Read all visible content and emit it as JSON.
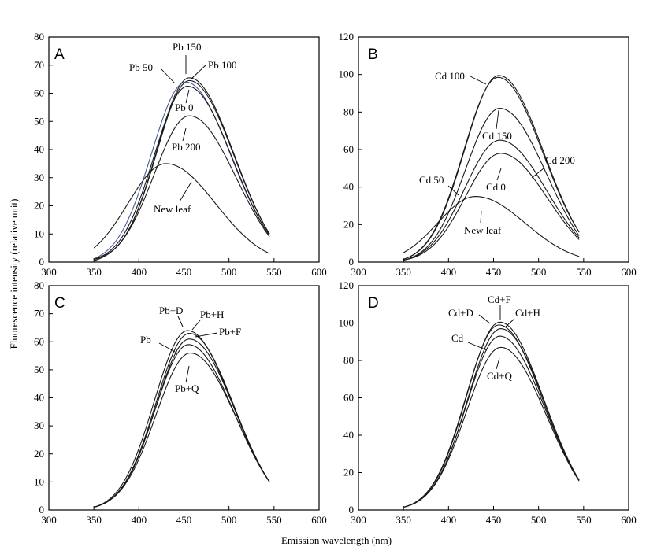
{
  "chart_data": [
    {
      "type": "line",
      "panel": "A",
      "xlim": [
        300,
        600
      ],
      "ylim": [
        0,
        80
      ],
      "yticks": [
        0,
        10,
        20,
        30,
        40,
        50,
        60,
        70,
        80
      ],
      "xticks": [
        300,
        350,
        400,
        450,
        500,
        550,
        600
      ],
      "series": [
        {
          "name": "Pb 150",
          "peak_x": 456,
          "peak_y": 65.5,
          "base_start": 1.0,
          "base_end": 10.0,
          "sl": 36,
          "sr": 50
        },
        {
          "name": "Pb 100",
          "peak_x": 456,
          "peak_y": 64.5,
          "base_start": 1.0,
          "base_end": 10.0,
          "sl": 36,
          "sr": 50
        },
        {
          "name": "Pb 50",
          "peak_x": 452,
          "peak_y": 64.0,
          "base_start": 1.2,
          "base_end": 9.5,
          "sl": 38,
          "sr": 50,
          "color": "#4a5a9e"
        },
        {
          "name": "Pb 0",
          "peak_x": 454,
          "peak_y": 62.5,
          "base_start": 1.0,
          "base_end": 9.5,
          "sl": 37,
          "sr": 50
        },
        {
          "name": "Pb 200",
          "peak_x": 456,
          "peak_y": 52.0,
          "base_start": 0.5,
          "base_end": 9.0,
          "sl": 39,
          "sr": 52
        },
        {
          "name": "New leaf",
          "peak_x": 430,
          "peak_y": 35.0,
          "base_start": 5.0,
          "base_end": 3.0,
          "sl": 42,
          "sr": 55
        }
      ],
      "annotations": [
        {
          "text": "Pb 150"
        },
        {
          "text": "Pb 50"
        },
        {
          "text": "Pb 100"
        },
        {
          "text": "Pb 0"
        },
        {
          "text": "Pb 200"
        },
        {
          "text": "New leaf"
        }
      ]
    },
    {
      "type": "line",
      "panel": "B",
      "xlim": [
        300,
        600
      ],
      "ylim": [
        0,
        120
      ],
      "yticks": [
        0,
        20,
        40,
        60,
        80,
        100,
        120
      ],
      "xticks": [
        300,
        350,
        400,
        450,
        500,
        550,
        600
      ],
      "series": [
        {
          "name": "Cd 100",
          "peak_x": 456,
          "peak_y": 99.5,
          "base_start": 1.5,
          "base_end": 16.0,
          "sl": 38,
          "sr": 50
        },
        {
          "name": "Cd 50",
          "peak_x": 455,
          "peak_y": 98.5,
          "base_start": 1.5,
          "base_end": 16.0,
          "sl": 38,
          "sr": 50
        },
        {
          "name": "Cd 150",
          "peak_x": 457,
          "peak_y": 82.0,
          "base_start": 1.0,
          "base_end": 14.0,
          "sl": 38,
          "sr": 52
        },
        {
          "name": "Cd 200",
          "peak_x": 457,
          "peak_y": 65.0,
          "base_start": 1.0,
          "base_end": 13.0,
          "sl": 39,
          "sr": 52
        },
        {
          "name": "Cd 0",
          "peak_x": 458,
          "peak_y": 58.0,
          "base_start": 1.0,
          "base_end": 12.0,
          "sl": 39,
          "sr": 52
        },
        {
          "name": "New leaf",
          "peak_x": 430,
          "peak_y": 35.0,
          "base_start": 5.0,
          "base_end": 3.0,
          "sl": 42,
          "sr": 55
        }
      ],
      "annotations": [
        {
          "text": "Cd 100"
        },
        {
          "text": "Cd 150"
        },
        {
          "text": "Cd 200"
        },
        {
          "text": "Cd 50"
        },
        {
          "text": "Cd 0"
        },
        {
          "text": "New leaf"
        }
      ]
    },
    {
      "type": "line",
      "panel": "C",
      "xlim": [
        300,
        600
      ],
      "ylim": [
        0,
        80
      ],
      "yticks": [
        0,
        10,
        20,
        30,
        40,
        50,
        60,
        70,
        80
      ],
      "xticks": [
        300,
        350,
        400,
        450,
        500,
        550,
        600
      ],
      "series": [
        {
          "name": "Pb+D",
          "peak_x": 454,
          "peak_y": 64.0,
          "base_start": 1.0,
          "base_end": 10.0,
          "sl": 37,
          "sr": 50
        },
        {
          "name": "Pb+H",
          "peak_x": 456,
          "peak_y": 63.0,
          "base_start": 1.0,
          "base_end": 10.0,
          "sl": 37,
          "sr": 50
        },
        {
          "name": "Pb+F",
          "peak_x": 456,
          "peak_y": 61.0,
          "base_start": 1.0,
          "base_end": 10.0,
          "sl": 37,
          "sr": 51
        },
        {
          "name": "Pb",
          "peak_x": 455,
          "peak_y": 59.0,
          "base_start": 1.0,
          "base_end": 10.0,
          "sl": 37,
          "sr": 51
        },
        {
          "name": "Pb+Q",
          "peak_x": 457,
          "peak_y": 56.0,
          "base_start": 1.0,
          "base_end": 10.0,
          "sl": 38,
          "sr": 52
        }
      ],
      "annotations": [
        {
          "text": "Pb+D"
        },
        {
          "text": "Pb+H"
        },
        {
          "text": "Pb+F"
        },
        {
          "text": "Pb"
        },
        {
          "text": "Pb+Q"
        }
      ]
    },
    {
      "type": "line",
      "panel": "D",
      "xlim": [
        300,
        600
      ],
      "ylim": [
        0,
        120
      ],
      "yticks": [
        0,
        20,
        40,
        60,
        80,
        100,
        120
      ],
      "xticks": [
        300,
        350,
        400,
        450,
        500,
        550,
        600
      ],
      "series": [
        {
          "name": "Cd+F",
          "peak_x": 457,
          "peak_y": 100.5,
          "base_start": 1.5,
          "base_end": 16.0,
          "sl": 37,
          "sr": 49
        },
        {
          "name": "Cd+D",
          "peak_x": 456,
          "peak_y": 99.0,
          "base_start": 1.5,
          "base_end": 16.0,
          "sl": 37,
          "sr": 49
        },
        {
          "name": "Cd+H",
          "peak_x": 458,
          "peak_y": 97.0,
          "base_start": 1.5,
          "base_end": 16.0,
          "sl": 37,
          "sr": 50
        },
        {
          "name": "Cd",
          "peak_x": 457,
          "peak_y": 93.0,
          "base_start": 1.5,
          "base_end": 16.0,
          "sl": 37,
          "sr": 50
        },
        {
          "name": "Cd+Q",
          "peak_x": 458,
          "peak_y": 87.0,
          "base_start": 1.5,
          "base_end": 15.5,
          "sl": 38,
          "sr": 51
        }
      ],
      "annotations": [
        {
          "text": "Cd+F"
        },
        {
          "text": "Cd+D"
        },
        {
          "text": "Cd+H"
        },
        {
          "text": "Cd"
        },
        {
          "text": "Cd+Q"
        }
      ]
    }
  ],
  "labels": {
    "ylabel": "Fluorescence intensity (relative unit)",
    "xlabel": "Emission wavelength (nm)",
    "panels": [
      "A",
      "B",
      "C",
      "D"
    ]
  },
  "colors": {
    "line": "#1a1a1a",
    "highlight": "#4a5a9e"
  }
}
